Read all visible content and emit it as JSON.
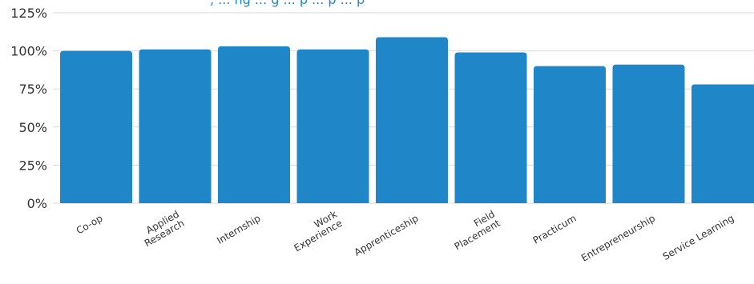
{
  "chart_data": {
    "type": "bar",
    "title": ", ... ng  ... g  ... p  ... p  ... p",
    "categories": [
      [
        "Co-op"
      ],
      [
        "Applied",
        "Research"
      ],
      [
        "Internship"
      ],
      [
        "Work",
        "Experience"
      ],
      [
        "Apprenticeship"
      ],
      [
        "Field",
        "Placement"
      ],
      [
        "Practicum"
      ],
      [
        "Entrepreneurship"
      ],
      [
        "Service Learning"
      ]
    ],
    "values": [
      100,
      101,
      103,
      101,
      109,
      99,
      90,
      91,
      78
    ],
    "ylim": [
      0,
      125
    ],
    "yticks": [
      "0%",
      "25%",
      "50%",
      "75%",
      "100%",
      "125%"
    ],
    "ytick_values": [
      0,
      25,
      50,
      75,
      100,
      125
    ],
    "grid": true,
    "bar_color": "#1f86c8",
    "grid_color": "#d9d9d9",
    "xlabel": "",
    "ylabel": ""
  }
}
